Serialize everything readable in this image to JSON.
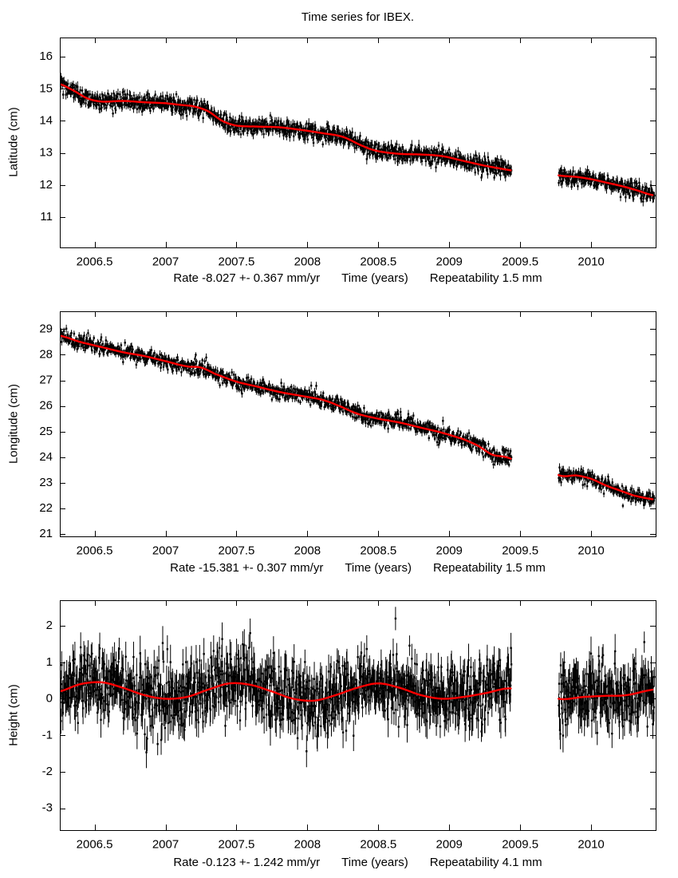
{
  "title": "Time series for IBEX.",
  "colors": {
    "background": "#ffffff",
    "points": "#000000",
    "trend_line": "#ff0000",
    "axes": "#000000"
  },
  "chart_data": [
    {
      "type": "scatter",
      "series_name": "latitude",
      "ylabel": "Latitude (cm)",
      "xlabel_rate": "Rate -8.027 +- 0.367 mm/yr",
      "xlabel_axis": "Time (years)",
      "xlabel_repeatability": "Repeatability 1.5 mm",
      "xlim": [
        2006.255,
        2010.455
      ],
      "ylim": [
        10.05,
        16.6
      ],
      "xticks": [
        2006.5,
        2007,
        2007.5,
        2008,
        2008.5,
        2009,
        2009.5,
        2010
      ],
      "yticks": [
        11,
        12,
        13,
        14,
        15,
        16
      ],
      "data_gap": [
        2009.44,
        2009.77
      ],
      "points_per_year": 365,
      "noise_sigma": 0.13,
      "error_bar_half_height": 0.13,
      "random_seed": 101,
      "trend_line": {
        "x": [
          2006.25,
          2006.35,
          2006.45,
          2006.55,
          2006.7,
          2006.85,
          2007.0,
          2007.1,
          2007.2,
          2007.3,
          2007.4,
          2007.5,
          2007.65,
          2007.8,
          2007.95,
          2008.1,
          2008.25,
          2008.4,
          2008.5,
          2008.65,
          2008.8,
          2008.95,
          2009.1,
          2009.25,
          2009.44,
          2009.77,
          2009.9,
          2010.0,
          2010.1,
          2010.2,
          2010.3,
          2010.44
        ],
        "y": [
          15.15,
          14.95,
          14.7,
          14.6,
          14.62,
          14.58,
          14.55,
          14.5,
          14.45,
          14.3,
          14.0,
          13.85,
          13.82,
          13.8,
          13.72,
          13.62,
          13.5,
          13.2,
          13.05,
          12.97,
          12.95,
          12.9,
          12.75,
          12.6,
          12.45,
          12.3,
          12.25,
          12.18,
          12.08,
          11.98,
          11.86,
          11.68
        ]
      }
    },
    {
      "type": "scatter",
      "series_name": "longitude",
      "ylabel": "Longitude (cm)",
      "xlabel_rate": "Rate -15.381 +- 0.307 mm/yr",
      "xlabel_axis": "Time (years)",
      "xlabel_repeatability": "Repeatability 1.5 mm",
      "xlim": [
        2006.255,
        2010.455
      ],
      "ylim": [
        20.9,
        29.7
      ],
      "xticks": [
        2006.5,
        2007,
        2007.5,
        2008,
        2008.5,
        2009,
        2009.5,
        2010
      ],
      "yticks": [
        21,
        22,
        23,
        24,
        25,
        26,
        27,
        28,
        29
      ],
      "data_gap": [
        2009.44,
        2009.77
      ],
      "points_per_year": 365,
      "noise_sigma": 0.14,
      "error_bar_half_height": 0.13,
      "random_seed": 202,
      "trend_line": {
        "x": [
          2006.25,
          2006.4,
          2006.55,
          2006.7,
          2006.85,
          2007.0,
          2007.15,
          2007.25,
          2007.35,
          2007.5,
          2007.65,
          2007.8,
          2007.95,
          2008.1,
          2008.2,
          2008.35,
          2008.5,
          2008.65,
          2008.8,
          2008.95,
          2009.1,
          2009.2,
          2009.3,
          2009.44,
          2009.77,
          2009.9,
          2010.0,
          2010.1,
          2010.2,
          2010.3,
          2010.44
        ],
        "y": [
          28.75,
          28.5,
          28.3,
          28.1,
          27.95,
          27.75,
          27.55,
          27.5,
          27.25,
          26.95,
          26.75,
          26.55,
          26.4,
          26.25,
          26.05,
          25.7,
          25.5,
          25.35,
          25.15,
          24.95,
          24.7,
          24.45,
          24.1,
          23.92,
          23.3,
          23.28,
          23.15,
          22.9,
          22.7,
          22.5,
          22.35
        ]
      }
    },
    {
      "type": "scatter",
      "series_name": "height",
      "ylabel": "Height (cm)",
      "xlabel_rate": "Rate -0.123 +- 1.242 mm/yr",
      "xlabel_axis": "Time (years)",
      "xlabel_repeatability": "Repeatability 4.1 mm",
      "xlim": [
        2006.255,
        2010.455
      ],
      "ylim": [
        -3.6,
        2.7
      ],
      "xticks": [
        2006.5,
        2007,
        2007.5,
        2008,
        2008.5,
        2009,
        2009.5,
        2010
      ],
      "yticks": [
        -3,
        -2,
        -1,
        0,
        1,
        2
      ],
      "data_gap": [
        2009.44,
        2009.77
      ],
      "points_per_year": 365,
      "noise_sigma": 0.45,
      "error_bar_half_height": 0.38,
      "random_seed": 303,
      "trend_line": {
        "x": [
          2006.25,
          2006.4,
          2006.55,
          2006.7,
          2006.85,
          2007.0,
          2007.15,
          2007.3,
          2007.45,
          2007.6,
          2007.75,
          2007.9,
          2008.05,
          2008.2,
          2008.35,
          2008.5,
          2008.65,
          2008.8,
          2008.95,
          2009.1,
          2009.25,
          2009.44,
          2009.77,
          2009.95,
          2010.1,
          2010.25,
          2010.44
        ],
        "y": [
          0.2,
          0.4,
          0.45,
          0.3,
          0.1,
          0.0,
          0.05,
          0.25,
          0.42,
          0.38,
          0.2,
          0.0,
          -0.05,
          0.1,
          0.3,
          0.42,
          0.3,
          0.1,
          0.0,
          0.05,
          0.15,
          0.28,
          0.0,
          0.05,
          0.08,
          0.1,
          0.25
        ]
      }
    }
  ]
}
